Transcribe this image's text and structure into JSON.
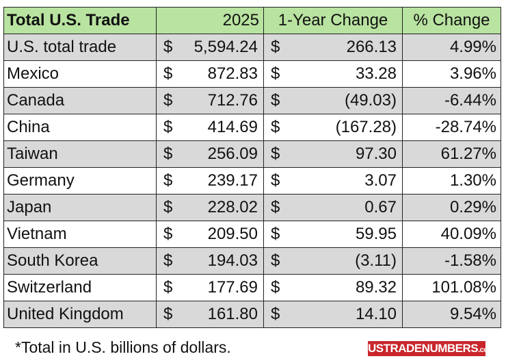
{
  "table": {
    "header": [
      "Total U.S. Trade",
      "2025",
      "1-Year Change",
      "% Change"
    ],
    "rows": [
      [
        "U.S. total trade",
        "$",
        "5,594.24",
        "$",
        "266.13",
        "4.99%"
      ],
      [
        "Mexico",
        "$",
        "872.83",
        "$",
        "33.28",
        "3.96%"
      ],
      [
        "Canada",
        "$",
        "712.76",
        "$",
        "(49.03)",
        "-6.44%"
      ],
      [
        "China",
        "$",
        "414.69",
        "$",
        "(167.28)",
        "-28.74%"
      ],
      [
        "Taiwan",
        "$",
        "256.09",
        "$",
        "97.30",
        "61.27%"
      ],
      [
        "Germany",
        "$",
        "239.17",
        "$",
        "3.07",
        "1.30%"
      ],
      [
        "Japan",
        "$",
        "228.02",
        "$",
        "0.67",
        "0.29%"
      ],
      [
        "Vietnam",
        "$",
        "209.50",
        "$",
        "59.95",
        "40.09%"
      ],
      [
        "South Korea",
        "$",
        "194.03",
        "$",
        "(3.11)",
        "-1.58%"
      ],
      [
        "Switzerland",
        "$",
        "177.69",
        "$",
        "89.32",
        "101.08%"
      ],
      [
        "United Kingdom",
        "$",
        "161.80",
        "$",
        "14.10",
        "9.54%"
      ]
    ]
  },
  "footnote": "*Total in U.S. billions of dollars.",
  "logo": {
    "name": "USTRADENUMBERS",
    "suffix": ".com"
  }
}
